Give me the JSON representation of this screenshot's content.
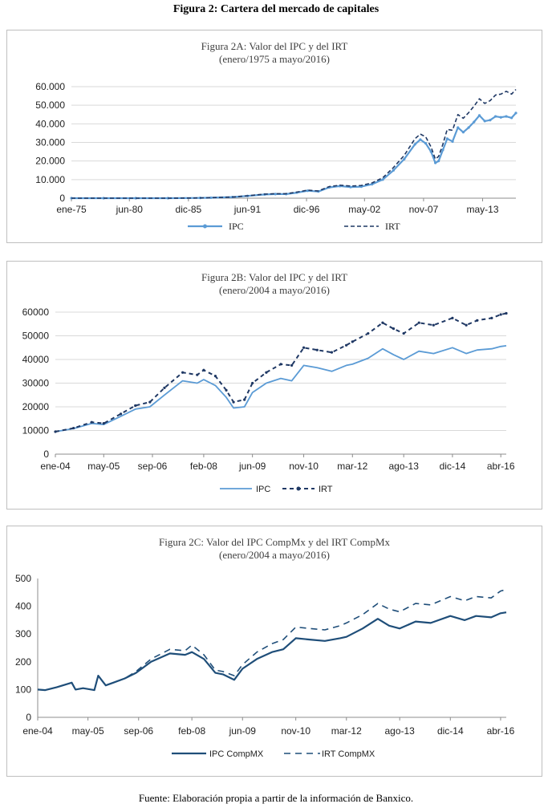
{
  "figure_title": "Figura 2: Cartera del mercado de capitales",
  "source_note": "Fuente: Elaboración propia a partir de la información de Banxico.",
  "colors": {
    "ipc_light": "#5b9bd5",
    "irt_dark": "#1f3864",
    "compmx": "#1f4e79",
    "grid": "#d9d9d9",
    "axis": "#bfbfbf"
  },
  "chart_data": [
    {
      "type": "line",
      "title": "Figura 2A: Valor del IPC y del IRT",
      "subtitle": "(enero/1975 a mayo/2016)",
      "x_tick_labels": [
        "ene-75",
        "jun-80",
        "dic-85",
        "jun-91",
        "dic-96",
        "may-02",
        "nov-07",
        "may-13"
      ],
      "y_tick_labels": [
        "0",
        "10.000",
        "20.000",
        "30.000",
        "40.000",
        "50.000",
        "60.000"
      ],
      "ylim": [
        0,
        60000
      ],
      "x_start": 1975.0,
      "x_end": 2016.4,
      "x_tick_values": [
        1975.0,
        1980.4,
        1985.9,
        1991.4,
        1996.9,
        2002.3,
        2007.8,
        2013.3
      ],
      "y_tick_values": [
        0,
        10000,
        20000,
        30000,
        40000,
        50000,
        60000
      ],
      "grid": true,
      "legend_position": "bottom",
      "series": [
        {
          "name": "IPC",
          "style": "solid-marker",
          "x": [
            1975,
            1978,
            1981,
            1984,
            1987,
            1988,
            1990,
            1991.4,
            1993,
            1994,
            1995,
            1996,
            1997,
            1998,
            1999,
            2000,
            2001,
            2002,
            2003,
            2004,
            2005,
            2006,
            2007,
            2007.5,
            2008,
            2008.5,
            2008.9,
            2009.2,
            2009.6,
            2010,
            2010.5,
            2011,
            2011.5,
            2012,
            2012.5,
            2013,
            2013.5,
            2014,
            2014.5,
            2015,
            2015.5,
            2016,
            2016.4
          ],
          "values": [
            0,
            0,
            0,
            10,
            150,
            250,
            600,
            1200,
            2000,
            2200,
            2200,
            3000,
            4000,
            3600,
            5800,
            6500,
            6000,
            6200,
            7500,
            10000,
            15000,
            21000,
            29000,
            31500,
            29500,
            25000,
            19000,
            20000,
            26000,
            32000,
            30500,
            38000,
            35500,
            38000,
            41000,
            44500,
            41500,
            42000,
            44000,
            43500,
            44000,
            43200,
            45800
          ]
        },
        {
          "name": "IRT",
          "style": "dashed",
          "x": [
            1975,
            1978,
            1981,
            1984,
            1987,
            1988,
            1990,
            1991.4,
            1993,
            1994,
            1995,
            1996,
            1997,
            1998,
            1999,
            2000,
            2001,
            2002,
            2003,
            2004,
            2005,
            2006,
            2007,
            2007.5,
            2008,
            2008.5,
            2008.9,
            2009.2,
            2009.6,
            2010,
            2010.5,
            2011,
            2011.5,
            2012,
            2012.5,
            2013,
            2013.5,
            2014,
            2014.5,
            2015,
            2015.5,
            2016,
            2016.4
          ],
          "values": [
            0,
            0,
            0,
            10,
            150,
            250,
            600,
            1300,
            2200,
            2400,
            2400,
            3300,
            4300,
            3900,
            6200,
            7000,
            6500,
            6800,
            8200,
            11000,
            16500,
            23000,
            32000,
            34500,
            33000,
            27500,
            21000,
            22500,
            29000,
            37000,
            36500,
            45000,
            43000,
            46000,
            49500,
            53500,
            51000,
            52500,
            55500,
            56000,
            57500,
            56000,
            58500
          ]
        }
      ]
    },
    {
      "type": "line",
      "title": "Figura 2B: Valor del IPC y del IRT",
      "subtitle": "(enero/2004 a mayo/2016)",
      "x_tick_labels": [
        "ene-04",
        "may-05",
        "sep-06",
        "feb-08",
        "jun-09",
        "nov-10",
        "mar-12",
        "ago-13",
        "dic-14",
        "abr-16"
      ],
      "y_tick_labels": [
        "0",
        "10000",
        "20000",
        "30000",
        "40000",
        "50000",
        "60000"
      ],
      "ylim": [
        0,
        60000
      ],
      "x_start": 2004.0,
      "x_end": 2016.4,
      "x_tick_values": [
        2004.0,
        2005.33,
        2006.67,
        2008.08,
        2009.42,
        2010.83,
        2012.17,
        2013.58,
        2014.92,
        2016.25
      ],
      "y_tick_values": [
        0,
        10000,
        20000,
        30000,
        40000,
        50000,
        60000
      ],
      "grid": true,
      "legend_position": "bottom",
      "series": [
        {
          "name": "IPC",
          "style": "solid",
          "x": [
            2004.0,
            2004.5,
            2005.0,
            2005.33,
            2005.8,
            2006.2,
            2006.6,
            2007.0,
            2007.5,
            2007.9,
            2008.08,
            2008.4,
            2008.7,
            2008.9,
            2009.2,
            2009.42,
            2009.8,
            2010.2,
            2010.5,
            2010.83,
            2011.2,
            2011.6,
            2012.0,
            2012.17,
            2012.6,
            2013.0,
            2013.3,
            2013.58,
            2014.0,
            2014.4,
            2014.92,
            2015.3,
            2015.6,
            2016.0,
            2016.25,
            2016.4
          ],
          "values": [
            9500,
            10800,
            13000,
            12500,
            16000,
            19000,
            20000,
            25000,
            31000,
            30000,
            31500,
            29000,
            24000,
            19500,
            20000,
            26000,
            30000,
            32000,
            31000,
            37500,
            36500,
            35000,
            37500,
            38000,
            40500,
            44500,
            42000,
            40000,
            43500,
            42500,
            45000,
            42500,
            44000,
            44500,
            45500,
            45800
          ]
        },
        {
          "name": "IRT",
          "style": "dashed-marker",
          "x": [
            2004.0,
            2004.5,
            2005.0,
            2005.33,
            2005.8,
            2006.2,
            2006.6,
            2007.0,
            2007.5,
            2007.9,
            2008.08,
            2008.4,
            2008.7,
            2008.9,
            2009.2,
            2009.42,
            2009.8,
            2010.2,
            2010.5,
            2010.83,
            2011.2,
            2011.6,
            2012.0,
            2012.17,
            2012.6,
            2013.0,
            2013.3,
            2013.58,
            2014.0,
            2014.4,
            2014.92,
            2015.3,
            2015.6,
            2016.0,
            2016.25,
            2016.4
          ],
          "values": [
            9500,
            11000,
            13500,
            13000,
            17000,
            20500,
            22000,
            28000,
            34500,
            33500,
            35500,
            33000,
            27000,
            22000,
            23000,
            30000,
            34500,
            38000,
            37500,
            45000,
            44000,
            43000,
            46000,
            47500,
            51000,
            55500,
            53000,
            51000,
            55500,
            54500,
            57500,
            54500,
            56500,
            57500,
            59000,
            59500
          ]
        }
      ]
    },
    {
      "type": "line",
      "title": "Figura 2C: Valor del IPC CompMx y del IRT CompMx",
      "subtitle": "(enero/2004 a mayo/2016)",
      "x_tick_labels": [
        "ene-04",
        "may-05",
        "sep-06",
        "feb-08",
        "jun-09",
        "nov-10",
        "mar-12",
        "ago-13",
        "dic-14",
        "abr-16"
      ],
      "y_tick_labels": [
        "0",
        "100",
        "200",
        "300",
        "400",
        "500"
      ],
      "ylim": [
        0,
        500
      ],
      "x_start": 2004.0,
      "x_end": 2016.4,
      "x_tick_values": [
        2004.0,
        2005.33,
        2006.67,
        2008.08,
        2009.42,
        2010.83,
        2012.17,
        2013.58,
        2014.92,
        2016.25
      ],
      "y_tick_values": [
        0,
        100,
        200,
        300,
        400,
        500
      ],
      "grid": false,
      "legend_position": "bottom",
      "series": [
        {
          "name": "IPC CompMX",
          "style": "solid-thick",
          "x": [
            2004.0,
            2004.2,
            2004.5,
            2004.9,
            2005.0,
            2005.2,
            2005.5,
            2005.6,
            2005.8,
            2006.0,
            2006.3,
            2006.6,
            2007.0,
            2007.5,
            2007.9,
            2008.08,
            2008.4,
            2008.7,
            2008.9,
            2009.2,
            2009.42,
            2009.8,
            2010.2,
            2010.5,
            2010.83,
            2011.2,
            2011.6,
            2012.0,
            2012.17,
            2012.6,
            2013.0,
            2013.3,
            2013.58,
            2014.0,
            2014.4,
            2014.92,
            2015.3,
            2015.6,
            2016.0,
            2016.25,
            2016.4
          ],
          "values": [
            100,
            98,
            108,
            125,
            100,
            105,
            98,
            150,
            115,
            125,
            140,
            160,
            200,
            230,
            225,
            235,
            210,
            160,
            155,
            135,
            175,
            210,
            235,
            245,
            285,
            280,
            275,
            285,
            290,
            320,
            355,
            330,
            320,
            345,
            340,
            365,
            350,
            365,
            360,
            375,
            378
          ]
        },
        {
          "name": "IRT CompMX",
          "style": "dashed-thick",
          "x": [
            2004.0,
            2004.2,
            2004.5,
            2004.9,
            2005.0,
            2005.2,
            2005.5,
            2005.6,
            2005.8,
            2006.0,
            2006.3,
            2006.6,
            2007.0,
            2007.5,
            2007.9,
            2008.08,
            2008.4,
            2008.7,
            2008.9,
            2009.2,
            2009.42,
            2009.8,
            2010.2,
            2010.5,
            2010.83,
            2011.2,
            2011.6,
            2012.0,
            2012.17,
            2012.6,
            2013.0,
            2013.3,
            2013.58,
            2014.0,
            2014.4,
            2014.92,
            2015.3,
            2015.6,
            2016.0,
            2016.25,
            2016.4
          ],
          "values": [
            100,
            98,
            108,
            125,
            100,
            105,
            98,
            150,
            115,
            125,
            140,
            165,
            210,
            245,
            240,
            260,
            225,
            170,
            165,
            150,
            190,
            235,
            265,
            280,
            325,
            320,
            315,
            330,
            340,
            370,
            410,
            390,
            380,
            410,
            405,
            435,
            420,
            435,
            430,
            455,
            460
          ]
        }
      ]
    }
  ]
}
